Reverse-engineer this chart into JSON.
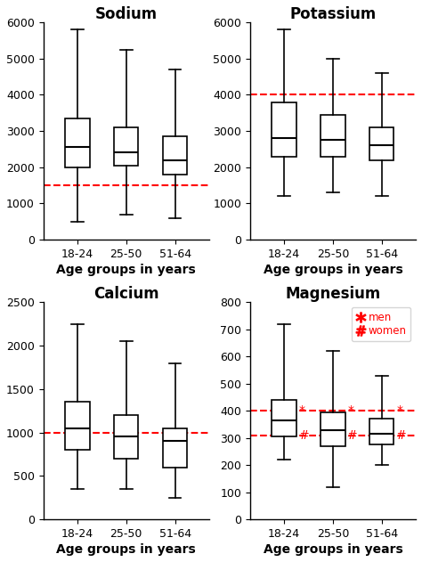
{
  "sodium": {
    "title": "Sodium",
    "ylim": [
      0,
      6000
    ],
    "yticks": [
      0,
      1000,
      2000,
      3000,
      4000,
      5000,
      6000
    ],
    "ref_line": 1500,
    "boxes": [
      {
        "whislo": 500,
        "q1": 2000,
        "med": 2550,
        "q3": 3350,
        "whishi": 5800
      },
      {
        "whislo": 700,
        "q1": 2050,
        "med": 2400,
        "q3": 3100,
        "whishi": 5250
      },
      {
        "whislo": 600,
        "q1": 1800,
        "med": 2200,
        "q3": 2850,
        "whishi": 4700
      }
    ]
  },
  "potassium": {
    "title": "Potassium",
    "ylim": [
      0,
      6000
    ],
    "yticks": [
      0,
      1000,
      2000,
      3000,
      4000,
      5000,
      6000
    ],
    "ref_line": 4000,
    "boxes": [
      {
        "whislo": 1200,
        "q1": 2300,
        "med": 2800,
        "q3": 3800,
        "whishi": 5800
      },
      {
        "whislo": 1300,
        "q1": 2300,
        "med": 2750,
        "q3": 3450,
        "whishi": 5000
      },
      {
        "whislo": 1200,
        "q1": 2200,
        "med": 2600,
        "q3": 3100,
        "whishi": 4600
      }
    ]
  },
  "calcium": {
    "title": "Calcium",
    "ylim": [
      0,
      2500
    ],
    "yticks": [
      0,
      500,
      1000,
      1500,
      2000,
      2500
    ],
    "ref_line": 1000,
    "boxes": [
      {
        "whislo": 350,
        "q1": 800,
        "med": 1050,
        "q3": 1350,
        "whishi": 2250
      },
      {
        "whislo": 350,
        "q1": 700,
        "med": 950,
        "q3": 1200,
        "whishi": 2050
      },
      {
        "whislo": 250,
        "q1": 600,
        "med": 900,
        "q3": 1050,
        "whishi": 1800
      }
    ]
  },
  "magnesium": {
    "title": "Magnesium",
    "ylim": [
      0,
      800
    ],
    "yticks": [
      0,
      100,
      200,
      300,
      400,
      500,
      600,
      700,
      800
    ],
    "ref_line_men": 400,
    "ref_line_women": 310,
    "boxes": [
      {
        "whislo": 220,
        "q1": 305,
        "med": 365,
        "q3": 440,
        "whishi": 720
      },
      {
        "whislo": 120,
        "q1": 270,
        "med": 330,
        "q3": 395,
        "whishi": 620
      },
      {
        "whislo": 200,
        "q1": 275,
        "med": 315,
        "q3": 370,
        "whishi": 530
      }
    ]
  },
  "categories": [
    "18-24",
    "25-50",
    "51-64"
  ],
  "xlabel": "Age groups in years",
  "ref_line_color": "#ff0000",
  "title_fontsize": 12,
  "label_fontsize": 10,
  "tick_fontsize": 9
}
